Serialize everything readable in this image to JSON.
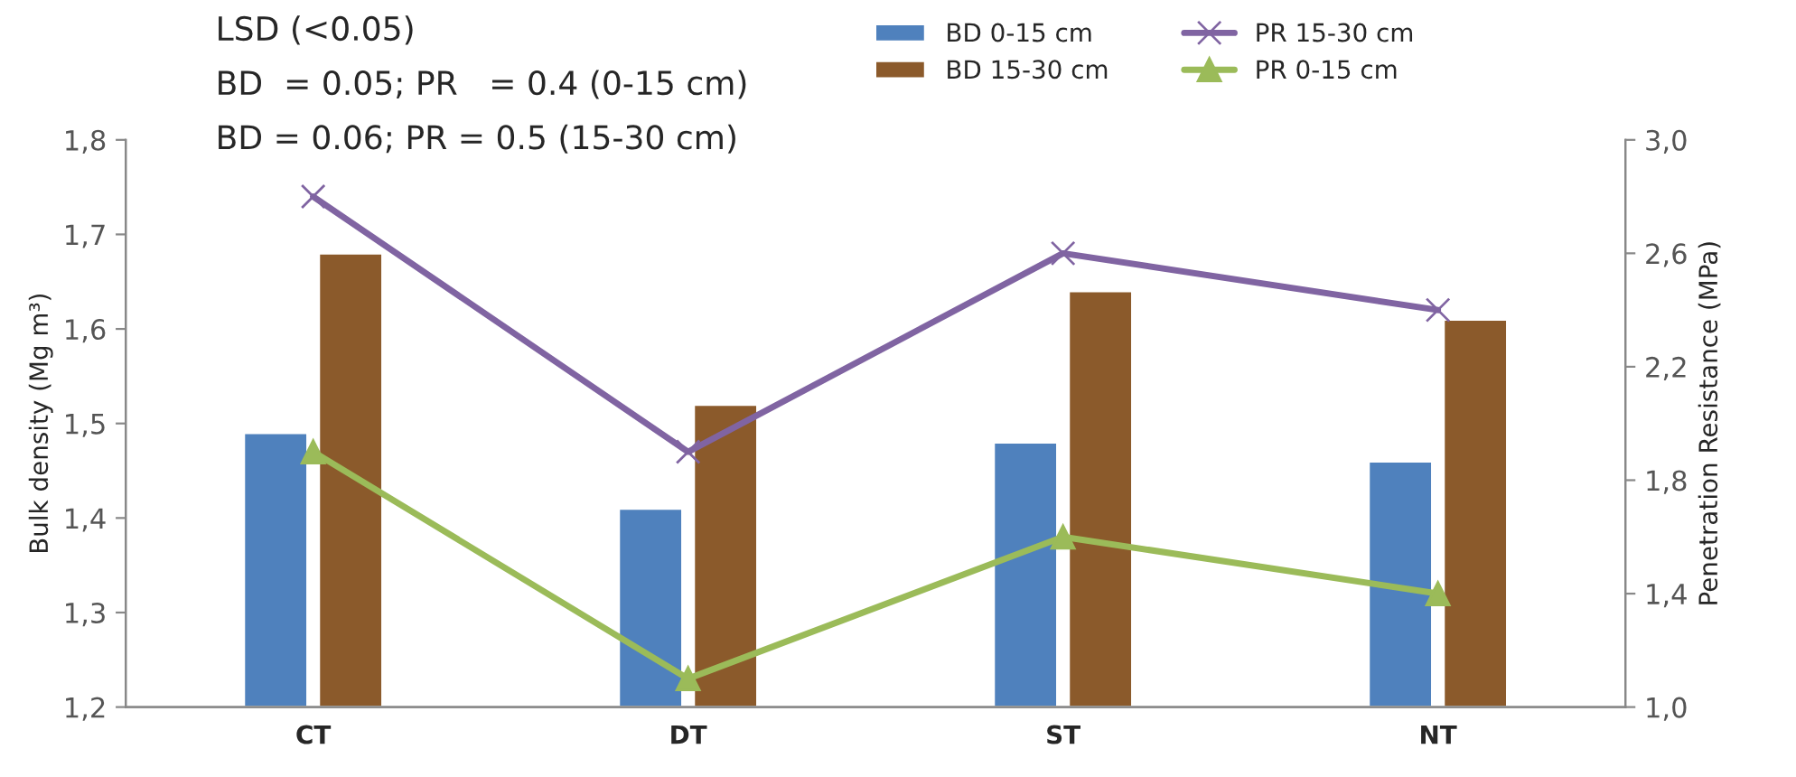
{
  "chart_data": {
    "type": "bar",
    "categories": [
      "CT",
      "DT",
      "ST",
      "NT"
    ],
    "ylabel": "Bulk density (Mg m³)",
    "y2label": "Penetration Resistance (MPa)",
    "annotations": [
      "LSD (<0.05)",
      "BD  = 0.05; PR   = 0.4 (0-15 cm)",
      "BD = 0.06; PR = 0.5 (15-30 cm)"
    ],
    "series": [
      {
        "name": "BD 0-15 cm",
        "color": "#4f81bd",
        "values": [
          1.49,
          1.41,
          1.48,
          1.46
        ]
      },
      {
        "name": "BD 15-30 cm",
        "color": "#8b5a2b",
        "values": [
          1.68,
          1.52,
          1.64,
          1.61
        ]
      },
      {
        "name": "PR 15-30 cm",
        "type": "line",
        "axis": "y2",
        "marker": "cross",
        "color": "#8064a2",
        "values": [
          2.8,
          1.9,
          2.6,
          2.4
        ]
      },
      {
        "name": "PR 0-15 cm",
        "type": "line",
        "axis": "y2",
        "marker": "triangle",
        "color": "#9bbb59",
        "values": [
          1.9,
          1.1,
          1.6,
          1.4
        ]
      }
    ],
    "ylim": [
      1.2,
      1.8
    ],
    "yticks": [
      {
        "value": 1.2,
        "label": "1,2"
      },
      {
        "value": 1.3,
        "label": "1,3"
      },
      {
        "value": 1.4,
        "label": "1,4"
      },
      {
        "value": 1.5,
        "label": "1,5"
      },
      {
        "value": 1.6,
        "label": "1,6"
      },
      {
        "value": 1.7,
        "label": "1,7"
      },
      {
        "value": 1.8,
        "label": "1,8"
      }
    ],
    "y2lim": [
      1.0,
      3.0
    ],
    "y2ticks": [
      {
        "value": 1.0,
        "label": "1,0"
      },
      {
        "value": 1.4,
        "label": "1,4"
      },
      {
        "value": 1.8,
        "label": "1,8"
      },
      {
        "value": 2.2,
        "label": "2,2"
      },
      {
        "value": 2.6,
        "label": "2,6"
      },
      {
        "value": 3.0,
        "label": "3,0"
      }
    ],
    "legend": "top right",
    "grid": false,
    "line_style": "solid"
  }
}
